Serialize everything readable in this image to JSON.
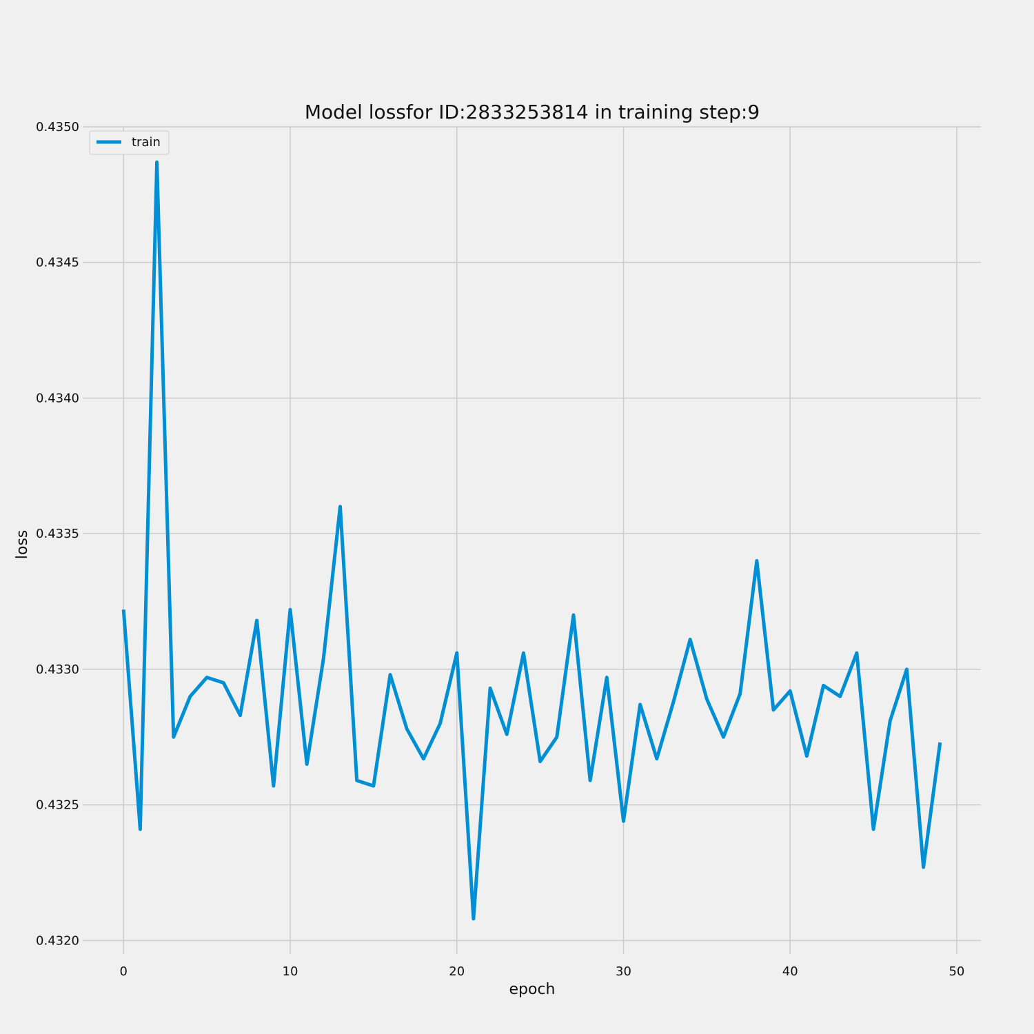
{
  "chart_data": {
    "type": "line",
    "title": "Model lossfor ID:2833253814 in training step:9",
    "xlabel": "epoch",
    "ylabel": "loss",
    "xlim": [
      -2.45,
      51.45
    ],
    "ylim": [
      0.43195,
      0.435
    ],
    "x_ticks": [
      0,
      10,
      20,
      30,
      40,
      50
    ],
    "y_ticks": [
      0.432,
      0.4325,
      0.433,
      0.4335,
      0.434,
      0.4345,
      0.435
    ],
    "y_tick_labels": [
      "0.4320",
      "0.4325",
      "0.4330",
      "0.4335",
      "0.4340",
      "0.4345",
      "0.4350"
    ],
    "grid": true,
    "legend_position": "top-left",
    "series": [
      {
        "name": "train",
        "color": "#008fd5",
        "x": [
          0,
          1,
          2,
          3,
          4,
          5,
          6,
          7,
          8,
          9,
          10,
          11,
          12,
          13,
          14,
          15,
          16,
          17,
          18,
          19,
          20,
          21,
          22,
          23,
          24,
          25,
          26,
          27,
          28,
          29,
          30,
          31,
          32,
          33,
          34,
          35,
          36,
          37,
          38,
          39,
          40,
          41,
          42,
          43,
          44,
          45,
          46,
          47,
          48,
          49
        ],
        "y": [
          0.43322,
          0.43241,
          0.43487,
          0.43275,
          0.4329,
          0.43297,
          0.43295,
          0.43283,
          0.43318,
          0.43257,
          0.43322,
          0.43265,
          0.43304,
          0.4336,
          0.43259,
          0.43257,
          0.43298,
          0.43278,
          0.43267,
          0.4328,
          0.43306,
          0.43208,
          0.43293,
          0.43276,
          0.43306,
          0.43266,
          0.43275,
          0.4332,
          0.43259,
          0.43297,
          0.43244,
          0.43287,
          0.43267,
          0.43288,
          0.43311,
          0.43289,
          0.43275,
          0.43291,
          0.4334,
          0.43285,
          0.43292,
          0.43268,
          0.43294,
          0.4329,
          0.43306,
          0.43241,
          0.43281,
          0.433,
          0.43227,
          0.43273
        ]
      }
    ]
  }
}
